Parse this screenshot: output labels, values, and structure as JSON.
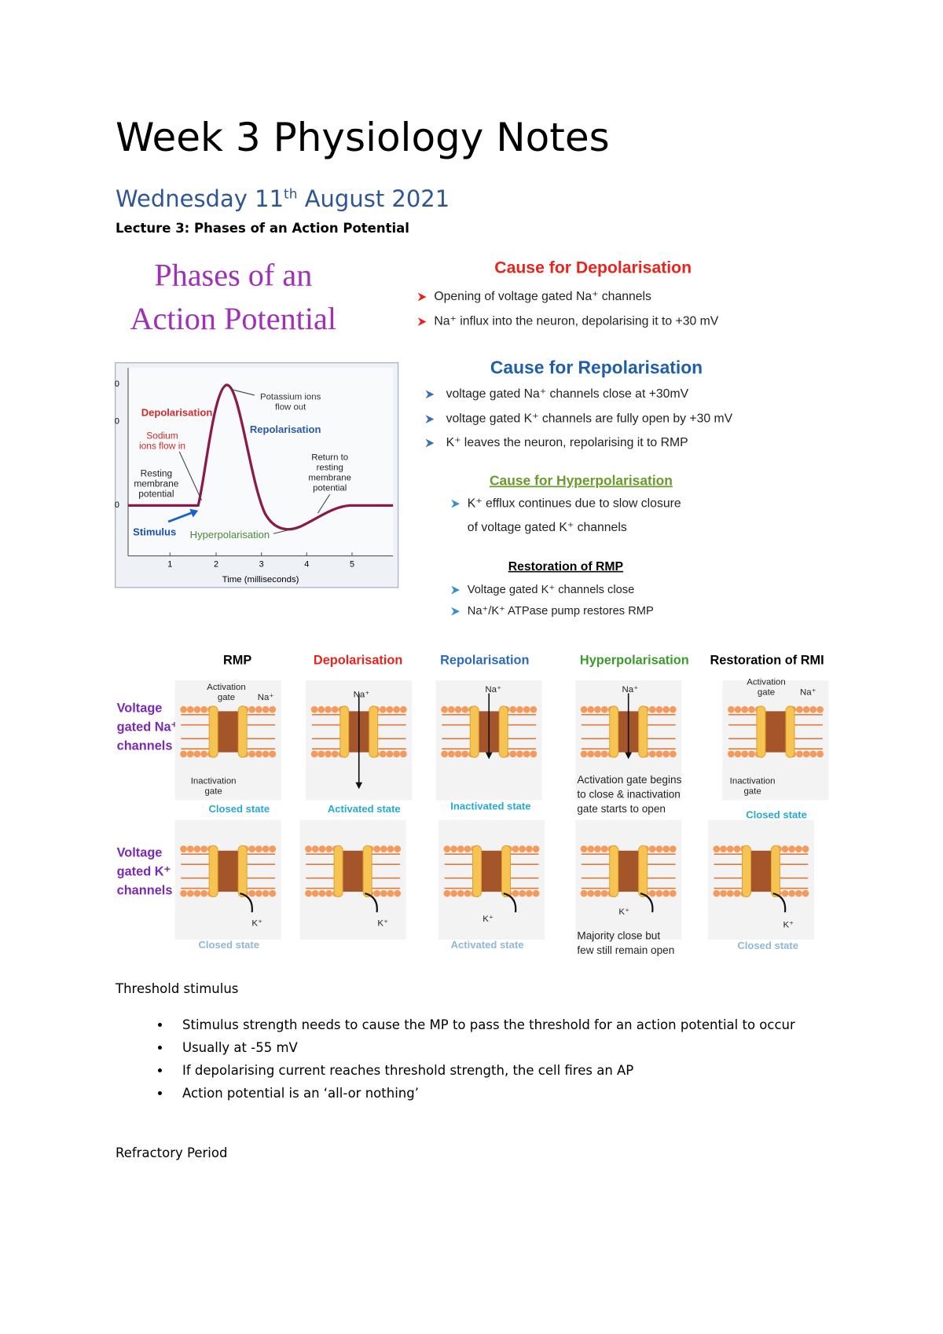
{
  "header": {
    "title": "Week 3 Physiology Notes",
    "date": {
      "main": "Wednesday 11",
      "sup": "th",
      "tail": " August 2021"
    },
    "lecture": "Lecture 3: Phases of an Action Potential"
  },
  "figure_1": {
    "title_lines": [
      "Phases of an",
      "Action Potential"
    ],
    "graph": {
      "y_labels": [
        "0",
        "0",
        "0"
      ],
      "x_labels": [
        "1",
        "2",
        "3",
        "4",
        "5"
      ],
      "x_axis_label": "Time (milliseconds)",
      "annotations": [
        [
          "Depolarisation"
        ],
        [
          "Potassium ions",
          "flow out"
        ],
        [
          "Repolarisation"
        ],
        [
          "Sodium",
          "ions flow in"
        ],
        [
          "Resting",
          "membrane",
          "potential"
        ],
        [
          "Return to",
          "resting",
          "membrane",
          "potential"
        ],
        [
          "Stimulus"
        ],
        [
          "Hyperpolarisation"
        ]
      ]
    },
    "sections": [
      {
        "heading": "Cause for Depolarisation",
        "items": [
          [
            "Opening of voltage gated Na⁺ channels"
          ],
          [
            "Na⁺ influx into the neuron, depolarising it to  +30 mV"
          ]
        ]
      },
      {
        "heading": "Cause for Repolarisation",
        "items": [
          [
            "voltage gated Na⁺ channels close at +30mV"
          ],
          [
            "voltage gated K⁺ channels are fully open by +30 mV"
          ],
          [
            "K⁺ leaves the neuron, repolarising it to RMP"
          ]
        ]
      },
      {
        "heading": "Cause for Hyperpolarisation",
        "items": [
          [
            "K⁺ efflux continues due to slow closure",
            "of voltage gated K⁺ channels"
          ]
        ]
      },
      {
        "heading": "Restoration of RMP",
        "items": [
          [
            "Voltage gated K⁺ channels close"
          ],
          [
            "Na⁺/K⁺ ATPase pump restores RMP"
          ]
        ]
      }
    ]
  },
  "figure_2": {
    "columns": [
      "RMP",
      "Depolarisation",
      "Repolarisation",
      "Hyperpolarisation",
      "Restoration of RMI"
    ],
    "rows": [
      {
        "label_lines": [
          "Voltage",
          "gated Na⁺",
          "channels"
        ],
        "panels": [
          {
            "notes": [
              [
                "Activation",
                "gate"
              ],
              [
                "Na⁺"
              ],
              [
                "Inactivation",
                "gate"
              ]
            ],
            "caption": [
              "Closed state"
            ]
          },
          {
            "notes": [
              [
                "Na⁺"
              ]
            ],
            "caption": [
              "Activated state"
            ]
          },
          {
            "notes": [
              [
                "Na⁺"
              ]
            ],
            "caption": [
              "Inactivated state"
            ]
          },
          {
            "notes": [
              [
                "Na⁺"
              ]
            ],
            "caption": [
              "Activation gate begins",
              "to close & inactivation",
              "gate starts to open"
            ]
          },
          {
            "notes": [
              [
                "Activation",
                "gate"
              ],
              [
                "Na⁺"
              ],
              [
                "Inactivation",
                "gate"
              ]
            ],
            "caption": [
              "Closed state"
            ]
          }
        ]
      },
      {
        "label_lines": [
          "Voltage",
          "gated K⁺",
          "channels"
        ],
        "panels": [
          {
            "notes": [
              [
                "K⁺"
              ]
            ],
            "caption": [
              "Closed state"
            ]
          },
          {
            "notes": [
              [
                "K⁺"
              ]
            ]
          },
          {
            "notes": [
              [
                "K⁺"
              ]
            ],
            "caption": [
              "Activated state"
            ]
          },
          {
            "notes": [
              [
                "K⁺"
              ]
            ],
            "caption": [
              "Majority close but",
              "few still remain open"
            ]
          },
          {
            "notes": [
              [
                "K⁺"
              ]
            ],
            "caption": [
              "Closed state"
            ]
          }
        ]
      }
    ]
  },
  "threshold": {
    "heading": "Threshold stimulus",
    "bullets": [
      "Stimulus strength needs to cause the MP to pass the threshold for an action potential to occur",
      "Usually at -55 mV",
      "If depolarising current reaches threshold strength, the cell fires an AP",
      "Action potential is an ‘all-or nothing’"
    ]
  },
  "refractory": {
    "heading": "Refractory Period"
  }
}
